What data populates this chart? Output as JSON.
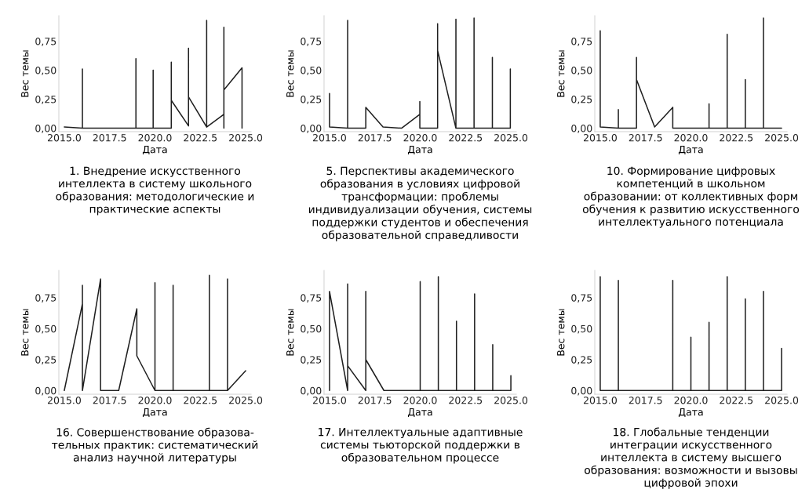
{
  "chart_data": [
    {
      "type": "line",
      "title": "1. Внедрение искусственного\nинтеллекта в систему школьного\nобразования: методологические и\nпрактические аспекты",
      "xlabel": "Дата",
      "ylabel": "Вес темы",
      "series": [
        {
          "color": "#1f1f1f",
          "x": [
            2015.0,
            2016.0,
            2016.0,
            2016.0,
            2018.95,
            2018.95,
            2018.95,
            2019.9,
            2019.9,
            2019.9,
            2020.9,
            2020.9,
            2020.9,
            2021.85,
            2021.85,
            2021.85,
            2022.85,
            2022.85,
            2022.85,
            2023.8,
            2023.8,
            2023.8,
            2023.8,
            2024.8,
            2024.8
          ],
          "values": [
            0.01,
            0.0,
            0.51,
            0.0,
            0.0,
            0.6,
            0.0,
            0.0,
            0.5,
            0.0,
            0.0,
            0.57,
            0.24,
            0.02,
            0.69,
            0.27,
            0.01,
            0.93,
            0.01,
            0.12,
            0.87,
            0.0,
            0.33,
            0.52,
            0.0
          ]
        }
      ],
      "xlim": [
        2014.7,
        2025.3
      ],
      "ylim": [
        -0.03,
        0.97
      ],
      "xticks": [
        {
          "value": 2015,
          "label": "2015.0"
        },
        {
          "value": 2017.5,
          "label": "2017.5"
        },
        {
          "value": 2020,
          "label": "2020.0"
        },
        {
          "value": 2022.5,
          "label": "2022.5"
        },
        {
          "value": 2025,
          "label": "2025.0"
        }
      ],
      "yticks": [
        {
          "value": 0,
          "label": "0,00"
        },
        {
          "value": 0.25,
          "label": "0,25"
        },
        {
          "value": 0.5,
          "label": "0,50"
        },
        {
          "value": 0.75,
          "label": "0,75"
        }
      ]
    },
    {
      "type": "line",
      "title": "5. Перспективы академического\nобразования в условиях цифровой\nтрансформации: проблемы\nиндивидуализации обучения, системы\nподдержки студентов и обеспечения\nобразовательной справедливости",
      "xlabel": "Дата",
      "ylabel": "Вес темы",
      "series": [
        {
          "color": "#1f1f1f",
          "x": [
            2015.0,
            2015.0,
            2016.0,
            2016.0,
            2016.0,
            2017.0,
            2017.0,
            2017.95,
            2018.97,
            2019.98,
            2019.98,
            2019.98,
            2020.96,
            2020.96,
            2020.96,
            2021.97,
            2021.97,
            2021.97,
            2022.97,
            2022.97,
            2022.97,
            2023.98,
            2023.98,
            2023.98,
            2024.97,
            2024.97
          ],
          "values": [
            0.3,
            0.01,
            0.0,
            0.93,
            0.0,
            0.0,
            0.18,
            0.01,
            0.0,
            0.12,
            0.23,
            0.0,
            0.0,
            0.9,
            0.67,
            0.0,
            0.94,
            0.0,
            0.0,
            0.95,
            0.0,
            0.0,
            0.61,
            0.0,
            0.0,
            0.51
          ]
        }
      ],
      "xlim": [
        2014.7,
        2025.3
      ],
      "ylim": [
        -0.03,
        0.97
      ],
      "xticks": [
        {
          "value": 2015,
          "label": "2015.0"
        },
        {
          "value": 2017.5,
          "label": "2017.5"
        },
        {
          "value": 2020,
          "label": "2020.0"
        },
        {
          "value": 2022.5,
          "label": "2022.5"
        },
        {
          "value": 2025,
          "label": "2025.0"
        }
      ],
      "yticks": [
        {
          "value": 0,
          "label": "0,00"
        },
        {
          "value": 0.25,
          "label": "0,25"
        },
        {
          "value": 0.5,
          "label": "0,50"
        },
        {
          "value": 0.75,
          "label": "0,75"
        }
      ]
    },
    {
      "type": "line",
      "title": "10. Формирование цифровых\nкомпетенций в школьном\nобразовании: от коллективных форм\nобучения к развитию искусственного\nинтеллектуального потенциала",
      "xlabel": "Дата",
      "ylabel": "Вес темы",
      "series": [
        {
          "color": "#1f1f1f",
          "x": [
            2015.0,
            2015.0,
            2016.0,
            2016.0,
            2016.0,
            2017.0,
            2017.0,
            2017.0,
            2018.0,
            2019.0,
            2019.0,
            2021.0,
            2021.0,
            2021.0,
            2022.0,
            2022.0,
            2022.0,
            2023.0,
            2023.0,
            2023.0,
            2024.0,
            2024.0,
            2024.0,
            2025.0
          ],
          "values": [
            0.84,
            0.01,
            0.0,
            0.16,
            0.0,
            0.0,
            0.61,
            0.42,
            0.01,
            0.18,
            0.0,
            0.0,
            0.21,
            0.0,
            0.0,
            0.81,
            0.0,
            0.0,
            0.42,
            0.0,
            0.0,
            0.95,
            0.0,
            0.0
          ]
        }
      ],
      "xlim": [
        2014.7,
        2025.3
      ],
      "ylim": [
        -0.03,
        0.97
      ],
      "xticks": [
        {
          "value": 2015,
          "label": "2015.0"
        },
        {
          "value": 2017.5,
          "label": "2017.5"
        },
        {
          "value": 2020,
          "label": "2020.0"
        },
        {
          "value": 2022.5,
          "label": "2022.5"
        },
        {
          "value": 2025,
          "label": "2025.0"
        }
      ],
      "yticks": [
        {
          "value": 0,
          "label": "0,00"
        },
        {
          "value": 0.25,
          "label": "0,25"
        },
        {
          "value": 0.5,
          "label": "0,50"
        },
        {
          "value": 0.75,
          "label": "0,75"
        }
      ]
    },
    {
      "type": "line",
      "title": "16. Совершенствование образова-\nтельных практик: систематический\nанализ научной литературы",
      "xlabel": "Дата",
      "ylabel": "Вес темы",
      "series": [
        {
          "color": "#1f1f1f",
          "x": [
            2015.0,
            2016.0,
            2016.0,
            2016.0,
            2017.0,
            2017.0,
            2018.0,
            2019.0,
            2019.0,
            2020.0,
            2020.0,
            2020.0,
            2021.0,
            2021.0,
            2021.0,
            2022.0,
            2023.0,
            2023.0,
            2023.0,
            2024.0,
            2024.0,
            2024.0,
            2025.0
          ],
          "values": [
            0.0,
            0.7,
            0.85,
            0.0,
            0.9,
            0.0,
            0.0,
            0.66,
            0.28,
            0.0,
            0.87,
            0.0,
            0.0,
            0.85,
            0.0,
            0.0,
            0.0,
            0.93,
            0.0,
            0.0,
            0.9,
            0.0,
            0.16
          ]
        }
      ],
      "xlim": [
        2014.7,
        2025.3
      ],
      "ylim": [
        -0.03,
        0.97
      ],
      "xticks": [
        {
          "value": 2015,
          "label": "2015.0"
        },
        {
          "value": 2017.5,
          "label": "2017.5"
        },
        {
          "value": 2020,
          "label": "2020.0"
        },
        {
          "value": 2022.5,
          "label": "2022.5"
        },
        {
          "value": 2025,
          "label": "2025.0"
        }
      ],
      "yticks": [
        {
          "value": 0,
          "label": "0,00"
        },
        {
          "value": 0.25,
          "label": "0,25"
        },
        {
          "value": 0.5,
          "label": "0,50"
        },
        {
          "value": 0.75,
          "label": "0,75"
        }
      ]
    },
    {
      "type": "line",
      "title": "17. Интеллектуальные адаптивные\nсистемы тьюторской поддержки в\nобразовательном процессе",
      "xlabel": "Дата",
      "ylabel": "Вес темы",
      "series": [
        {
          "color": "#1f1f1f",
          "x": [
            2015.0,
            2015.0,
            2016.0,
            2016.0,
            2016.0,
            2017.0,
            2017.0,
            2017.0,
            2018.0,
            2019.0,
            2020.0,
            2020.0,
            2020.0,
            2021.0,
            2021.0,
            2021.0,
            2022.0,
            2022.0,
            2022.0,
            2023.0,
            2023.0,
            2023.0,
            2024.0,
            2024.0,
            2024.0,
            2025.0,
            2025.0
          ],
          "values": [
            0.0,
            0.8,
            0.0,
            0.86,
            0.2,
            0.0,
            0.8,
            0.25,
            0.0,
            0.0,
            0.0,
            0.88,
            0.0,
            0.0,
            0.92,
            0.0,
            0.0,
            0.56,
            0.0,
            0.0,
            0.78,
            0.0,
            0.0,
            0.37,
            0.0,
            0.0,
            0.12
          ]
        }
      ],
      "xlim": [
        2014.7,
        2025.3
      ],
      "ylim": [
        -0.03,
        0.97
      ],
      "xticks": [
        {
          "value": 2015,
          "label": "2015.0"
        },
        {
          "value": 2017.5,
          "label": "2017.5"
        },
        {
          "value": 2020,
          "label": "2020.0"
        },
        {
          "value": 2022.5,
          "label": "2022.5"
        },
        {
          "value": 2025,
          "label": "2025.0"
        }
      ],
      "yticks": [
        {
          "value": 0,
          "label": "0,00"
        },
        {
          "value": 0.25,
          "label": "0,25"
        },
        {
          "value": 0.5,
          "label": "0,50"
        },
        {
          "value": 0.75,
          "label": "0,75"
        }
      ]
    },
    {
      "type": "line",
      "title": "18. Глобальные тенденции\nинтеграции искусственного\nинтеллекта в систему высшего\nобразования: возможности и вызовы\nцифровой эпохи",
      "xlabel": "Дата",
      "ylabel": "Вес темы",
      "series": [
        {
          "color": "#1f1f1f",
          "x": [
            2015.0,
            2015.0,
            2016.0,
            2016.0,
            2016.0,
            2019.0,
            2019.0,
            2019.0,
            2020.0,
            2020.0,
            2020.0,
            2021.0,
            2021.0,
            2021.0,
            2022.0,
            2022.0,
            2022.0,
            2023.0,
            2023.0,
            2023.0,
            2024.0,
            2024.0,
            2024.0,
            2025.0,
            2025.0
          ],
          "values": [
            0.92,
            0.0,
            0.0,
            0.89,
            0.0,
            0.0,
            0.89,
            0.0,
            0.0,
            0.43,
            0.0,
            0.0,
            0.55,
            0.0,
            0.0,
            0.92,
            0.0,
            0.0,
            0.74,
            0.0,
            0.0,
            0.8,
            0.0,
            0.0,
            0.34
          ]
        }
      ],
      "xlim": [
        2014.7,
        2025.3
      ],
      "ylim": [
        -0.03,
        0.97
      ],
      "xticks": [
        {
          "value": 2015,
          "label": "2015.0"
        },
        {
          "value": 2017.5,
          "label": "2017.5"
        },
        {
          "value": 2020,
          "label": "2020.0"
        },
        {
          "value": 2022.5,
          "label": "2022.5"
        },
        {
          "value": 2025,
          "label": "2025.0"
        }
      ],
      "yticks": [
        {
          "value": 0,
          "label": "0,00"
        },
        {
          "value": 0.25,
          "label": "0,25"
        },
        {
          "value": 0.5,
          "label": "0,50"
        },
        {
          "value": 0.75,
          "label": "0,75"
        }
      ]
    }
  ]
}
